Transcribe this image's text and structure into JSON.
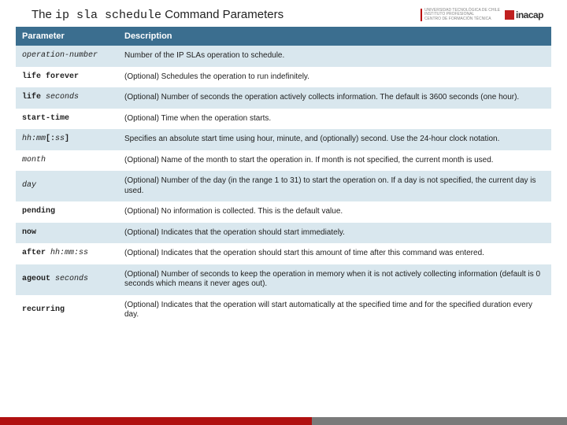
{
  "header": {
    "title_prefix": "The ",
    "title_mono": "ip sla schedule",
    "title_suffix": " Command Parameters",
    "logo_uni_lines": [
      "UNIVERSIDAD TECNOLÓGICA DE CHILE",
      "INSTITUTO PROFESIONAL",
      "CENTRO DE FORMACIÓN TÉCNICA"
    ],
    "logo_inacap": "inacap"
  },
  "table": {
    "columns": [
      "Parameter",
      "Description"
    ],
    "rows": [
      {
        "param_html": "<span class='italic'>operation-number</span>",
        "desc": "Number of the IP SLAs operation to schedule."
      },
      {
        "param_html": "life forever",
        "desc": "(Optional) Schedules the operation to run indefinitely."
      },
      {
        "param_html": "life <span class='italic'>seconds</span>",
        "desc": "(Optional) Number of seconds the operation actively collects information. The default is 3600 seconds (one hour)."
      },
      {
        "param_html": "start-time",
        "desc": "(Optional) Time when the operation starts."
      },
      {
        "param_html": "<span class='italic'>hh:mm</span>[:<span class='italic'>ss</span>]",
        "desc": "Specifies an absolute start time using hour, minute, and (optionally) second. Use the 24-hour clock notation."
      },
      {
        "param_html": "<span class='italic'>month</span>",
        "desc": "(Optional) Name of the month to start the operation in. If month is not specified, the current month is used."
      },
      {
        "param_html": "<span class='italic'>day</span>",
        "desc": "(Optional) Number of the day (in the range 1 to 31) to start the operation on. If a day is not specified, the current day is used."
      },
      {
        "param_html": "pending",
        "desc": "(Optional) No information is collected. This is the default value."
      },
      {
        "param_html": "now",
        "desc": "(Optional) Indicates that the operation should start immediately."
      },
      {
        "param_html": "after <span class='italic'>hh:mm:ss</span>",
        "desc": "(Optional) Indicates that the operation should start this amount of time after this command was entered."
      },
      {
        "param_html": "ageout <span class='italic'>seconds</span>",
        "desc": "(Optional) Number of seconds to keep the operation in memory when it is not actively collecting information (default is 0 seconds which means it never ages out)."
      },
      {
        "param_html": "recurring",
        "desc": "(Optional) Indicates that the operation will start automatically at the specified time and for the specified duration every day."
      }
    ]
  },
  "colors": {
    "header_bg": "#3b6e8f",
    "row_odd": "#d9e7ee",
    "row_even": "#ffffff",
    "footer_red": "#b01010",
    "footer_gray": "#7a7a7a"
  }
}
